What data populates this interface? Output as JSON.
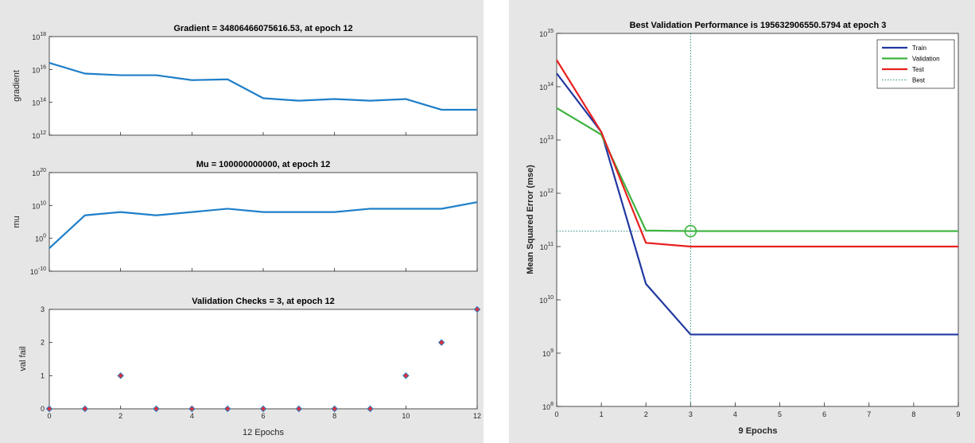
{
  "colors": {
    "panel_background": "#e6e6e6",
    "training_line": "#1f7fc9",
    "marker_fill": "#e0303a",
    "marker_edge": "#1f7fc9",
    "train": "#2038a0",
    "validation": "#3db33f",
    "test": "#e82020",
    "best": "#2a8a80"
  },
  "chart_data": [
    {
      "type": "line",
      "title": "Gradient = 34806466075616.53, at epoch 12",
      "xlabel": "",
      "ylabel": "gradient",
      "scale": "log",
      "xlim": [
        0,
        12
      ],
      "ylim_exponents": [
        12,
        18
      ],
      "x": [
        0,
        1,
        2,
        3,
        4,
        5,
        6,
        7,
        8,
        9,
        10,
        11,
        12
      ],
      "values_log10": [
        16.4,
        15.75,
        15.65,
        15.65,
        15.35,
        15.4,
        14.25,
        14.1,
        14.2,
        14.1,
        14.2,
        13.55,
        13.55
      ],
      "yticks": [
        {
          "base": "10",
          "exp": "12"
        },
        {
          "base": "10",
          "exp": "14"
        },
        {
          "base": "10",
          "exp": "16"
        },
        {
          "base": "10",
          "exp": "18"
        }
      ],
      "xticks": []
    },
    {
      "type": "line",
      "title": "Mu = 100000000000, at epoch 12",
      "xlabel": "",
      "ylabel": "mu",
      "scale": "log",
      "xlim": [
        0,
        12
      ],
      "ylim_exponents": [
        -10,
        20
      ],
      "x": [
        0,
        1,
        2,
        3,
        4,
        5,
        6,
        7,
        8,
        9,
        10,
        11,
        12
      ],
      "values_log10": [
        -3,
        7,
        8,
        7,
        8,
        9,
        8,
        8,
        8,
        9,
        9,
        9,
        11
      ],
      "yticks": [
        {
          "base": "10",
          "exp": "-10"
        },
        {
          "base": "10",
          "exp": "0"
        },
        {
          "base": "10",
          "exp": "10"
        },
        {
          "base": "10",
          "exp": "20"
        }
      ],
      "xticks": []
    },
    {
      "type": "scatter",
      "title": "Validation Checks = 3, at epoch 12",
      "xlabel": "12 Epochs",
      "ylabel": "val fail",
      "xlim": [
        0,
        12
      ],
      "ylim": [
        0,
        3
      ],
      "x": [
        0,
        1,
        2,
        3,
        4,
        5,
        6,
        7,
        8,
        9,
        10,
        11,
        12
      ],
      "values": [
        0,
        0,
        1,
        0,
        0,
        0,
        0,
        0,
        0,
        0,
        1,
        2,
        3
      ],
      "yticks": [
        "0",
        "1",
        "2",
        "3"
      ],
      "xticks": [
        "0",
        "2",
        "4",
        "6",
        "8",
        "10",
        "12"
      ]
    },
    {
      "type": "line",
      "title": "Best Validation Performance is 195632906550.5794 at epoch 3",
      "xlabel": "9 Epochs",
      "ylabel": "Mean Squared Error  (mse)",
      "scale": "log",
      "xlim": [
        0,
        9
      ],
      "ylim_exponents": [
        8,
        15
      ],
      "x": [
        0,
        1,
        2,
        3,
        4,
        5,
        6,
        7,
        8,
        9
      ],
      "series": [
        {
          "name": "Train",
          "values_log10": [
            14.25,
            13.15,
            10.3,
            9.35,
            9.35,
            9.35,
            9.35,
            9.35,
            9.35,
            9.35
          ]
        },
        {
          "name": "Validation",
          "values_log10": [
            13.6,
            13.1,
            11.3,
            11.29,
            11.29,
            11.29,
            11.29,
            11.29,
            11.29,
            11.29
          ]
        },
        {
          "name": "Test",
          "values_log10": [
            14.5,
            13.15,
            11.07,
            11.0,
            11.0,
            11.0,
            11.0,
            11.0,
            11.0,
            11.0
          ]
        }
      ],
      "best": {
        "name": "Best",
        "epoch": 3,
        "value_log10": 11.29
      },
      "yticks": [
        {
          "base": "10",
          "exp": "8"
        },
        {
          "base": "10",
          "exp": "9"
        },
        {
          "base": "10",
          "exp": "10"
        },
        {
          "base": "10",
          "exp": "11"
        },
        {
          "base": "10",
          "exp": "12"
        },
        {
          "base": "10",
          "exp": "13"
        },
        {
          "base": "10",
          "exp": "14"
        },
        {
          "base": "10",
          "exp": "15"
        }
      ],
      "xticks": [
        "0",
        "1",
        "2",
        "3",
        "4",
        "5",
        "6",
        "7",
        "8",
        "9"
      ],
      "legend_position": "top-right"
    }
  ]
}
